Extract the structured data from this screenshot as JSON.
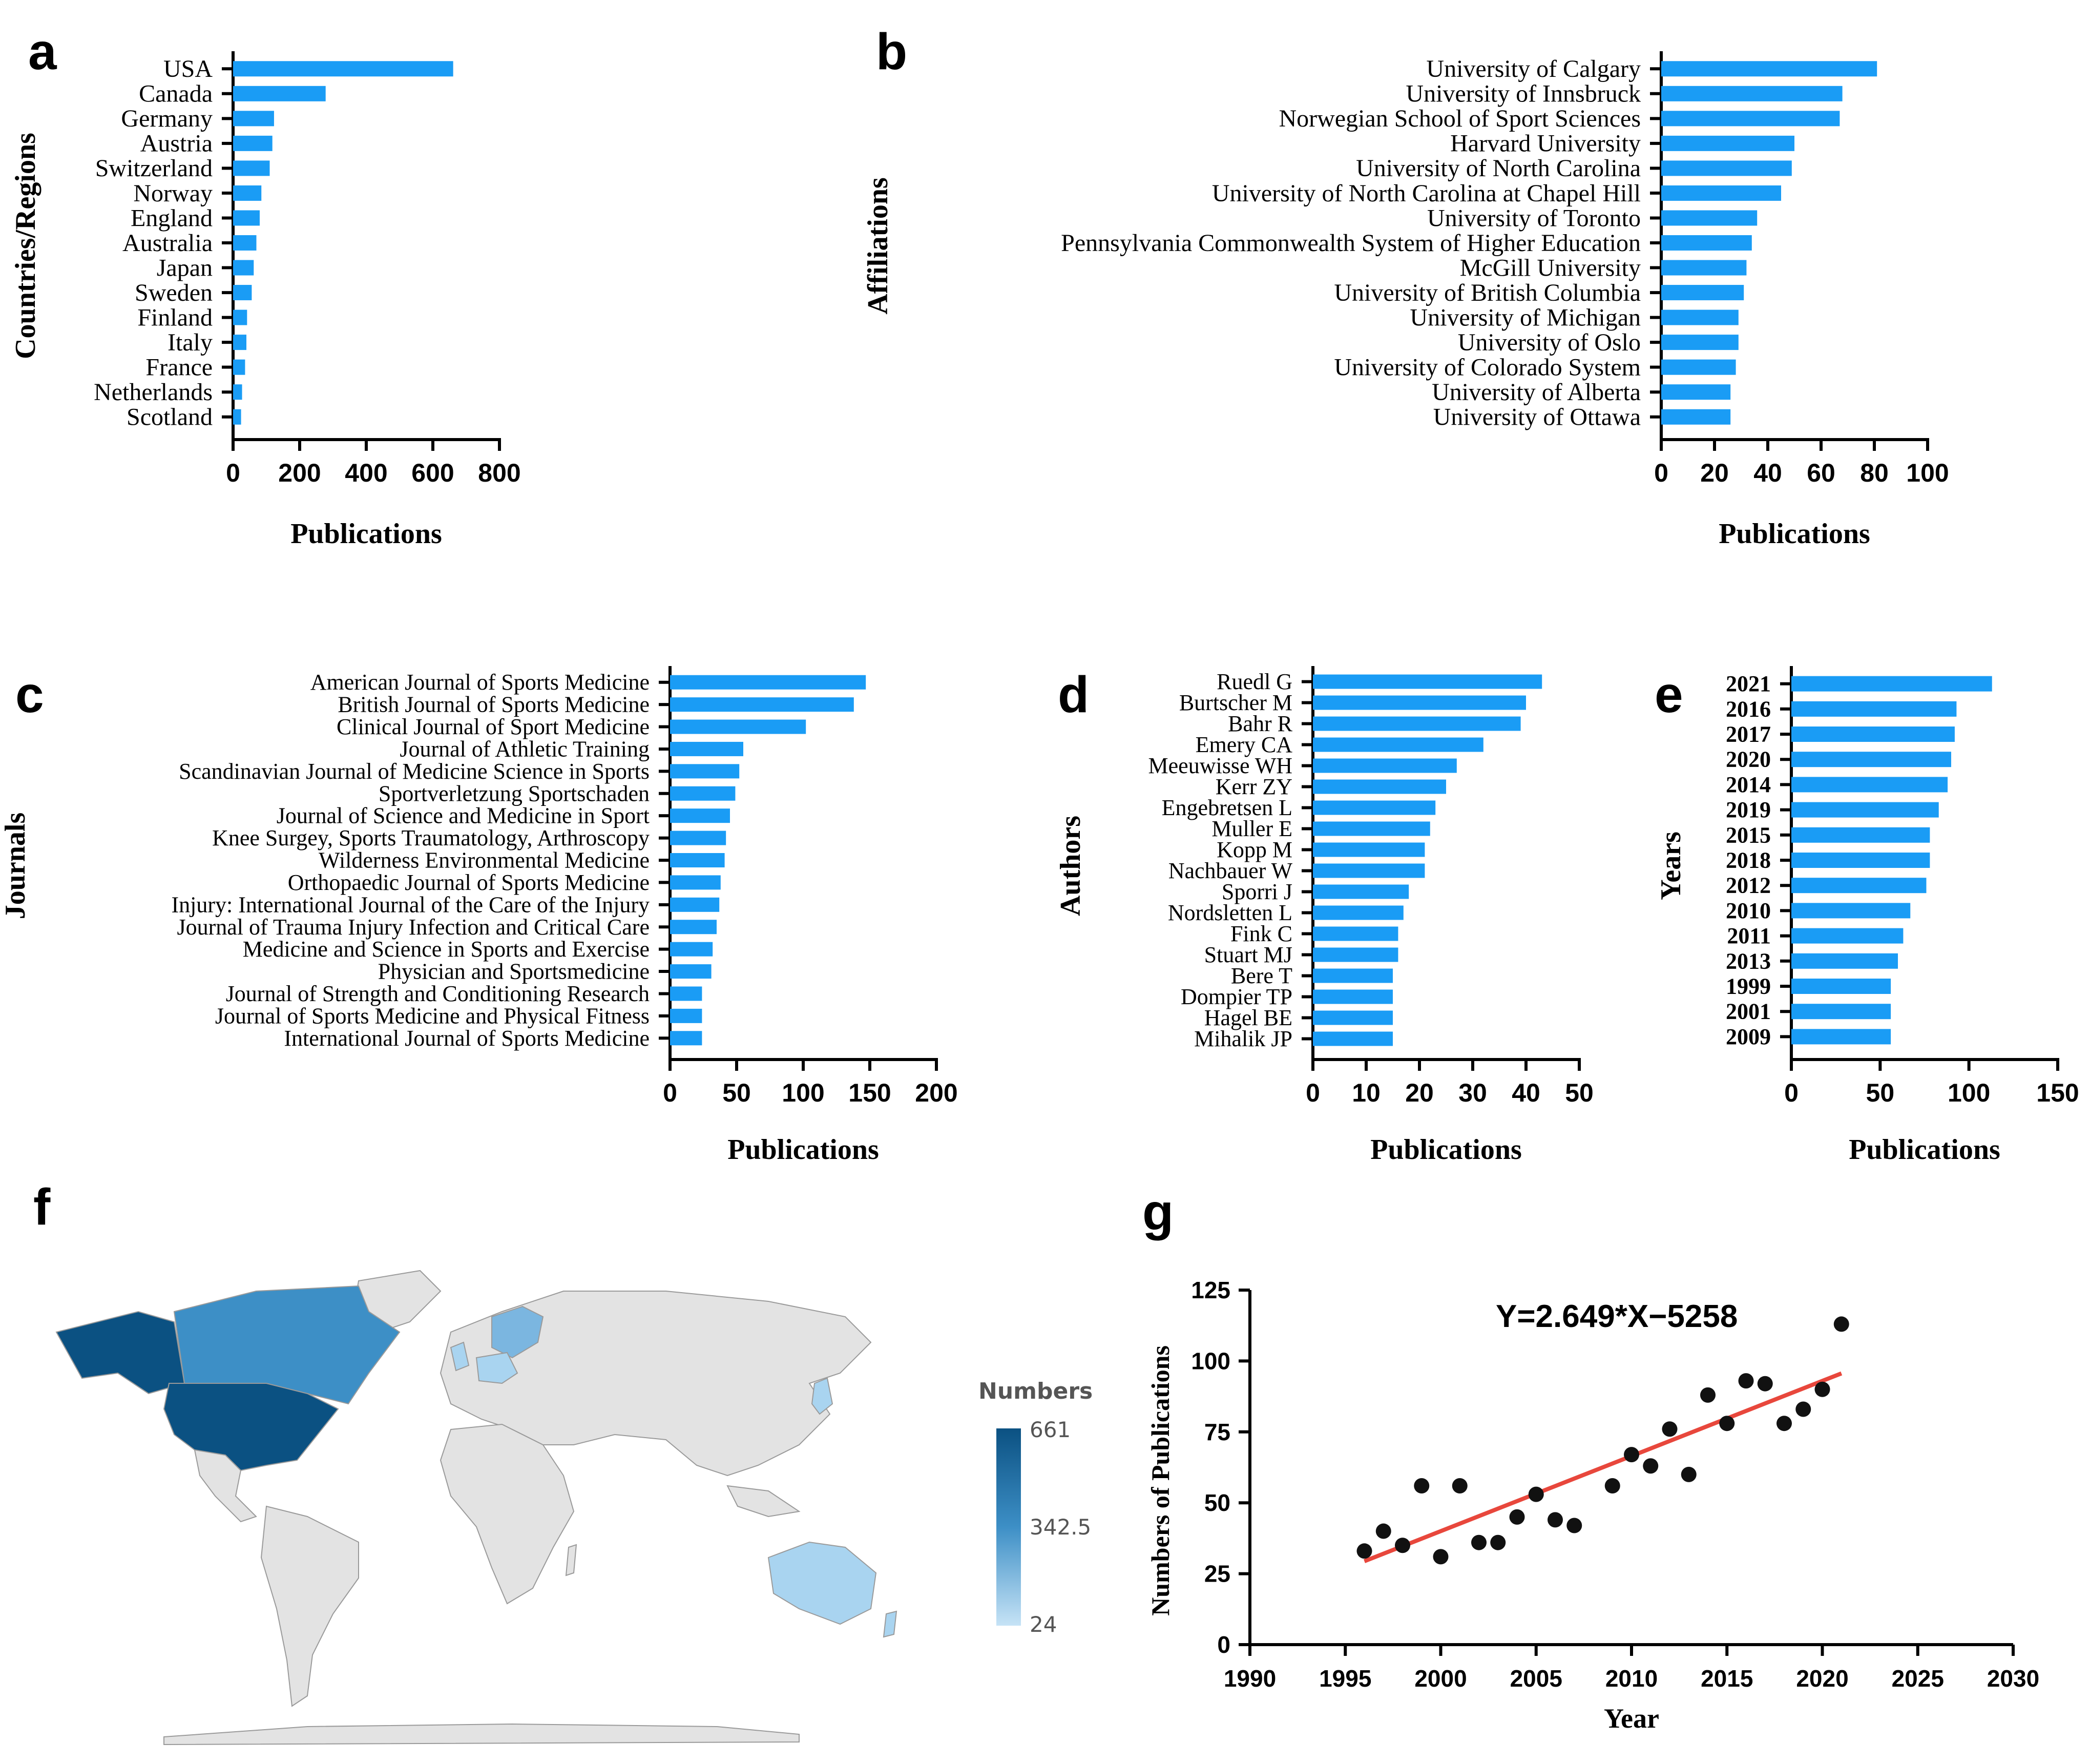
{
  "chart_data": [
    {
      "panel": "a",
      "type": "bar",
      "orientation": "horizontal",
      "categories": [
        "USA",
        "Canada",
        "Germany",
        "Austria",
        "Switzerland",
        "Norway",
        "England",
        "Australia",
        "Japan",
        "Sweden",
        "Finland",
        "Italy",
        "France",
        "Netherlands",
        "Scotland"
      ],
      "values": [
        661,
        278,
        123,
        118,
        110,
        85,
        80,
        70,
        62,
        56,
        42,
        40,
        36,
        27,
        24
      ],
      "xlabel": "Publications",
      "ylabel": "Countries/Regions",
      "xlim": [
        0,
        800
      ],
      "xticks": [
        0,
        200,
        400,
        600,
        800
      ]
    },
    {
      "panel": "b",
      "type": "bar",
      "orientation": "horizontal",
      "categories": [
        "University of Calgary",
        "University of Innsbruck",
        "Norwegian School of Sport Sciences",
        "Harvard University",
        "University of North Carolina",
        "University of North Carolina at Chapel Hill",
        "University of Toronto",
        "Pennsylvania Commonwealth System of Higher Education",
        "McGill University",
        "University of British Columbia",
        "University of Michigan",
        "University of Oslo",
        "University of Colorado System",
        "University of Alberta",
        "University of Ottawa"
      ],
      "values": [
        81,
        68,
        67,
        50,
        49,
        45,
        36,
        34,
        32,
        31,
        29,
        29,
        28,
        26,
        26
      ],
      "xlabel": "Publications",
      "ylabel": "Affiliations",
      "xlim": [
        0,
        100
      ],
      "xticks": [
        0,
        20,
        40,
        60,
        80,
        100
      ]
    },
    {
      "panel": "c",
      "type": "bar",
      "orientation": "horizontal",
      "categories": [
        "American Journal of Sports Medicine",
        "British Journal of Sports Medicine",
        "Clinical Journal of Sport Medicine",
        "Journal of Athletic Training",
        "Scandinavian Journal of Medicine Science in Sports",
        "Sportverletzung Sportschaden",
        "Journal of Science and Medicine in Sport",
        "Knee Surgey, Sports Traumatology, Arthroscopy",
        "Wilderness Environmental Medicine",
        "Orthopaedic Journal of Sports Medicine",
        "Injury: International Journal of the Care of the Injury",
        "Journal of Trauma Injury Infection and Critical Care",
        "Medicine and Science in Sports and Exercise",
        "Physician and Sportsmedicine",
        "Journal of Strength and Conditioning Research",
        "Journal of Sports Medicine and Physical Fitness",
        "International Journal of Sports Medicine"
      ],
      "values": [
        147,
        138,
        102,
        55,
        52,
        49,
        45,
        42,
        41,
        38,
        37,
        35,
        32,
        31,
        24,
        24,
        24
      ],
      "xlabel": "Publications",
      "ylabel": "Journals",
      "xlim": [
        0,
        200
      ],
      "xticks": [
        0,
        50,
        100,
        150,
        200
      ]
    },
    {
      "panel": "d",
      "type": "bar",
      "orientation": "horizontal",
      "categories": [
        "Ruedl G",
        "Burtscher M",
        "Bahr R",
        "Emery CA",
        "Meeuwisse WH",
        "Kerr ZY",
        "Engebretsen L",
        "Muller E",
        "Kopp M",
        "Nachbauer W",
        "Sporri J",
        "Nordsletten L",
        "Fink C",
        "Stuart MJ",
        "Bere T",
        "Dompier TP",
        "Hagel BE",
        "Mihalik JP"
      ],
      "values": [
        43,
        40,
        39,
        32,
        27,
        25,
        23,
        22,
        21,
        21,
        18,
        17,
        16,
        16,
        15,
        15,
        15,
        15
      ],
      "xlabel": "Publications",
      "ylabel": "Authors",
      "xlim": [
        0,
        50
      ],
      "xticks": [
        0,
        10,
        20,
        30,
        40,
        50
      ]
    },
    {
      "panel": "e",
      "type": "bar",
      "orientation": "horizontal",
      "categories": [
        "2021",
        "2016",
        "2017",
        "2020",
        "2014",
        "2019",
        "2015",
        "2018",
        "2012",
        "2010",
        "2011",
        "2013",
        "1999",
        "2001",
        "2009"
      ],
      "values": [
        113,
        93,
        92,
        90,
        88,
        83,
        78,
        78,
        76,
        67,
        63,
        60,
        56,
        56,
        56
      ],
      "xlabel": "Publications",
      "ylabel": "Years",
      "xlim": [
        0,
        150
      ],
      "xticks": [
        0,
        50,
        100,
        150
      ]
    },
    {
      "panel": "f",
      "type": "heatmap",
      "kind": "choropleth world map",
      "legend_title": "Numbers",
      "legend_ticks": [
        "661",
        "342.5",
        "24"
      ],
      "colors": {
        "low": "#a9d4f0",
        "high": "#0b5182",
        "no_data": "#e3e3e3"
      },
      "highlighted": [
        "USA",
        "Canada",
        "Australia",
        "Germany",
        "Austria",
        "Switzerland",
        "Norway",
        "Sweden",
        "Finland",
        "England",
        "Scotland",
        "Japan",
        "Italy",
        "France",
        "Netherlands"
      ]
    },
    {
      "panel": "g",
      "type": "scatter",
      "x": [
        1996,
        1997,
        1998,
        1999,
        2000,
        2001,
        2002,
        2003,
        2004,
        2005,
        2006,
        2007,
        2009,
        2010,
        2011,
        2012,
        2013,
        2014,
        2015,
        2016,
        2017,
        2018,
        2019,
        2020,
        2021
      ],
      "y": [
        33,
        40,
        35,
        56,
        31,
        56,
        36,
        36,
        45,
        53,
        44,
        42,
        56,
        67,
        63,
        76,
        60,
        88,
        78,
        93,
        92,
        78,
        83,
        90,
        113
      ],
      "trendline": {
        "slope": 2.649,
        "intercept": -5258,
        "x_range": [
          1996,
          2021
        ]
      },
      "equation": "Y=2.649*X−5258",
      "xlabel": "Year",
      "ylabel": "Numbers of Publications",
      "xlim": [
        1990,
        2030
      ],
      "ylim": [
        0,
        125
      ],
      "xticks": [
        1990,
        1995,
        2000,
        2005,
        2010,
        2015,
        2020,
        2025,
        2030
      ],
      "yticks": [
        0,
        25,
        50,
        75,
        100,
        125
      ]
    }
  ]
}
